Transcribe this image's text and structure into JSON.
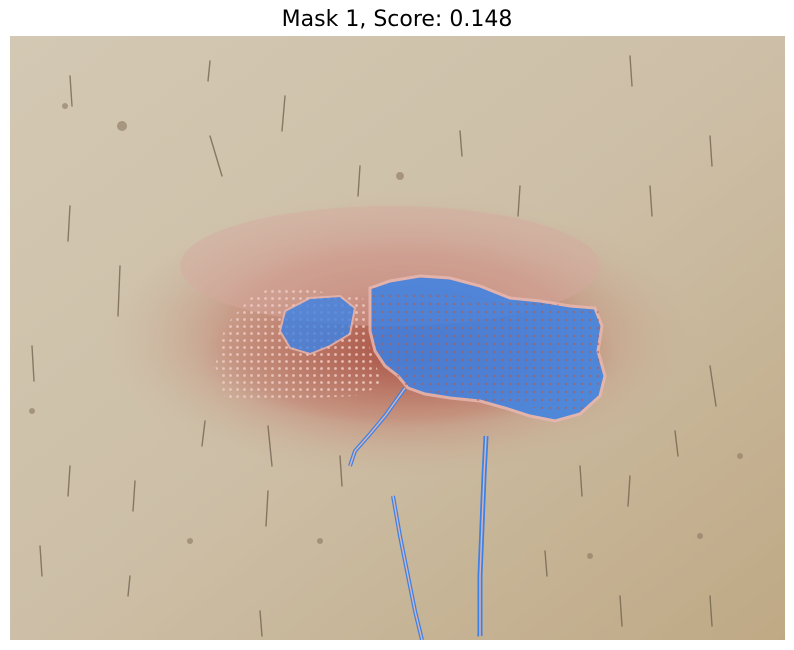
{
  "figure": {
    "title": "Mask 1, Score: 0.148"
  },
  "image": {
    "description_colors": {
      "skin": "#cdbfa8",
      "skin_dark": "#bba988",
      "redness": "#b8574a",
      "mask_fill": "#3b82e6",
      "mask_outline": "#e8b7b0"
    }
  }
}
